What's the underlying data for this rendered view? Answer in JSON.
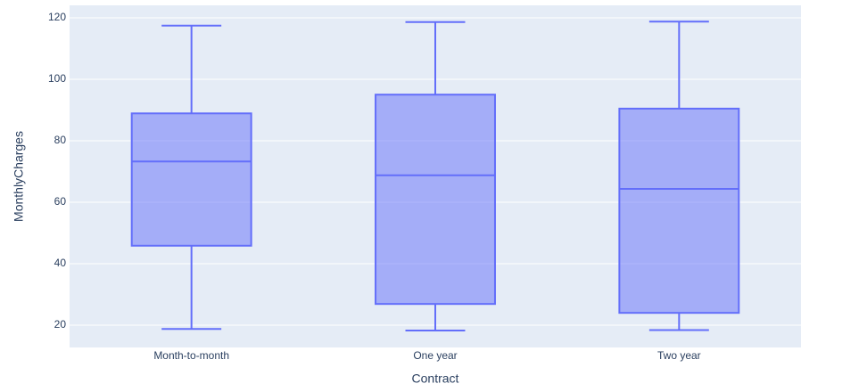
{
  "chart_data": {
    "type": "box",
    "x_label": "Contract",
    "y_label": "MonthlyCharges",
    "categories": [
      "Month-to-month",
      "One year",
      "Two year"
    ],
    "color": "#636efa",
    "min": [
      18.75,
      18.25,
      18.4
    ],
    "q1": [
      45.85,
      26.9,
      24.0
    ],
    "median": [
      73.25,
      68.75,
      64.35
    ],
    "q3": [
      88.9,
      95.0,
      90.45
    ],
    "max": [
      117.45,
      118.6,
      118.75
    ],
    "ylim": [
      12.75,
      124.05
    ],
    "yticks": [
      20,
      40,
      60,
      80,
      100,
      120
    ],
    "grid": true
  }
}
